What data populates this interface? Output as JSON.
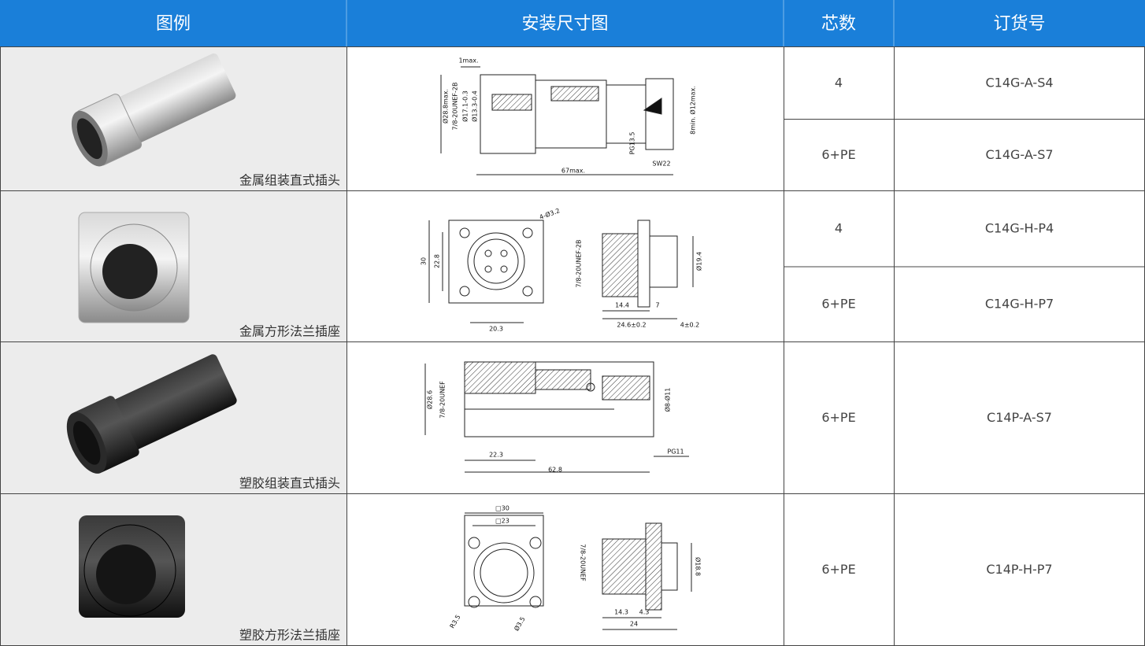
{
  "header": [
    "图例",
    "安装尺寸图",
    "芯数",
    "订货号"
  ],
  "rows": [
    {
      "caption": "金属组装直式插头",
      "drawing_labels": [
        "1max.",
        "Ø28.8max.",
        "7/8-20UNEF-2B",
        "Ø17.1-0.3",
        "Ø13.3-0.4",
        "PG13.5",
        "SW22",
        "67max.",
        "8min. Ø12max."
      ],
      "variants": [
        {
          "cores": "4",
          "order": "C14G-A-S4"
        },
        {
          "cores": "6+PE",
          "order": "C14G-A-S7"
        }
      ]
    },
    {
      "caption": "金属方形法兰插座",
      "drawing_labels": [
        "4-Ø3.2",
        "30",
        "22.8",
        "20.3",
        "7/8-20UNEF-2B",
        "Ø19.4",
        "14.4",
        "7",
        "24.6±0.2",
        "4±0.2"
      ],
      "variants": [
        {
          "cores": "4",
          "order": "C14G-H-P4"
        },
        {
          "cores": "6+PE",
          "order": "C14G-H-P7"
        }
      ]
    },
    {
      "caption": "塑胶组装直式插头",
      "drawing_labels": [
        "Ø28.6",
        "7/8-20UNEF",
        "Ø8-Ø11",
        "PG11",
        "22.3",
        "62.8"
      ],
      "variants": [
        {
          "cores": "6+PE",
          "order": "C14P-A-S7"
        }
      ]
    },
    {
      "caption": "塑胶方形法兰插座",
      "drawing_labels": [
        "□30",
        "□23",
        "R3.5",
        "Ø3.5",
        "7/8-20UNEF",
        "Ø18.8",
        "14.3",
        "4.3",
        "24"
      ],
      "variants": [
        {
          "cores": "6+PE",
          "order": "C14P-H-P7"
        }
      ]
    }
  ]
}
